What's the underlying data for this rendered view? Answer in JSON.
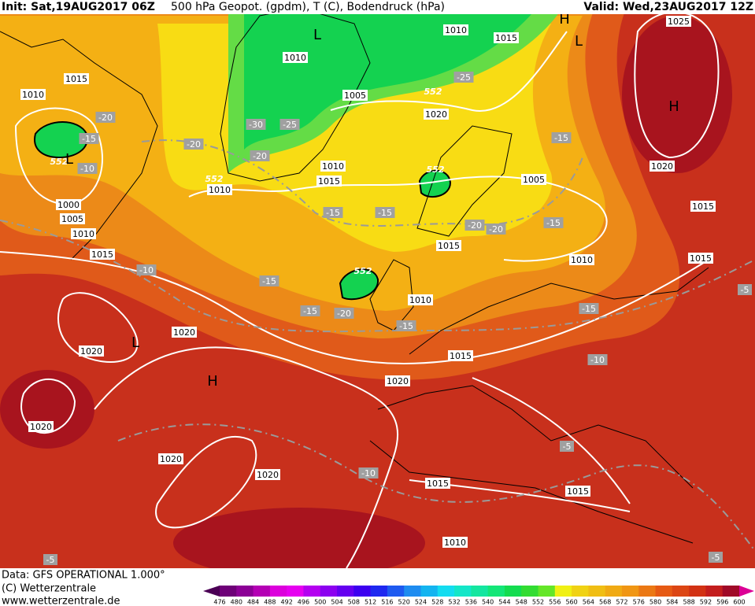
{
  "header": {
    "init": "Init: Sat,19AUG2017 06Z",
    "title": "500 hPa Geopot. (gpdm), T (C), Bodendruck (hPa)",
    "valid": "Valid: Wed,23AUG2017 12Z"
  },
  "isobar_labels": [
    1010,
    1015,
    1025,
    1015,
    1010,
    1010,
    1005,
    1020,
    1010,
    1015,
    1010,
    1000,
    1005,
    1010,
    1015,
    1020,
    1005,
    1015,
    1015,
    1010,
    1015,
    1010,
    1020,
    1020,
    1015,
    1020,
    1020,
    1020,
    1020,
    1015,
    1015,
    1010
  ],
  "temperature_labels": [
    -25,
    -20,
    -15,
    -10,
    -20,
    -30,
    -25,
    -20,
    -15,
    -15,
    -15,
    -20,
    -20,
    -15,
    -10,
    -15,
    -15,
    -20,
    -15,
    -15,
    -10,
    -5,
    -10,
    -5,
    -5,
    -5
  ],
  "height_labels": [
    552,
    552,
    552,
    552,
    552
  ],
  "pressure_centers": [
    "L",
    "L",
    "H",
    "H",
    "L",
    "L",
    "H"
  ],
  "footer": {
    "data": "Data: GFS OPERATIONAL 1.000°",
    "copyright": "(C) Wetterzentrale",
    "url": "www.wetterzentrale.de"
  },
  "colorbar": {
    "labels": [
      476,
      480,
      484,
      488,
      492,
      496,
      500,
      504,
      508,
      512,
      516,
      520,
      524,
      528,
      532,
      536,
      540,
      544,
      548,
      552,
      556,
      560,
      564,
      568,
      572,
      576,
      580,
      584,
      588,
      592,
      596,
      600
    ],
    "colors": [
      "#4b0055",
      "#6e0078",
      "#8c0096",
      "#b400b4",
      "#dc00dc",
      "#e600f0",
      "#b400f0",
      "#8c00f0",
      "#6400f0",
      "#3c00f0",
      "#1e28f0",
      "#1e5af0",
      "#1e8cf0",
      "#14b4f0",
      "#14dcf0",
      "#14e6c8",
      "#14e6a0",
      "#14e678",
      "#14dc50",
      "#32dc32",
      "#64e628",
      "#f0f014",
      "#f0d214",
      "#f0be14",
      "#f0aa14",
      "#f09614",
      "#eb7814",
      "#e65a14",
      "#dc4614",
      "#d23214",
      "#c31e1e",
      "#a00a28",
      "#dc0096"
    ]
  }
}
